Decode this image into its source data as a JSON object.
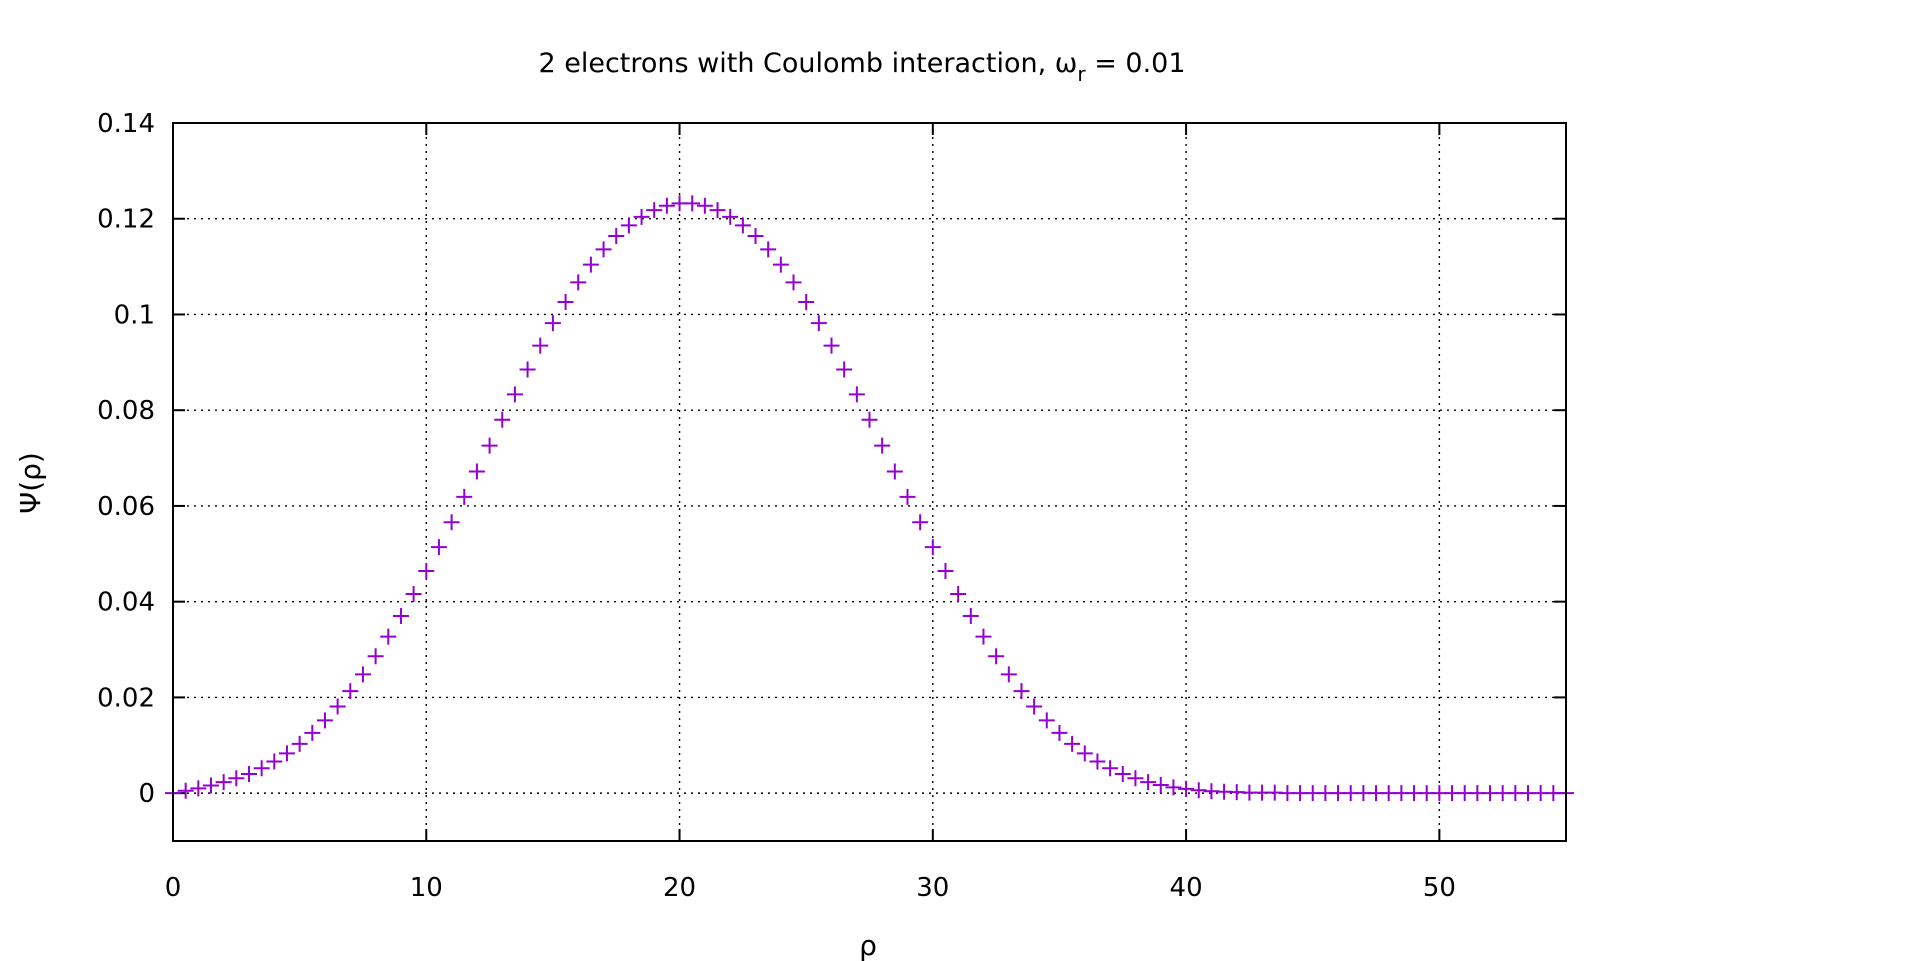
{
  "chart_data": {
    "type": "scatter",
    "title": {
      "main": "2 electrons with Coulomb interaction, ω",
      "subscript": "r",
      "suffix": " = 0.01"
    },
    "xlabel": "ρ",
    "ylabel": "Ψ(ρ)",
    "xlim": [
      0,
      55
    ],
    "ylim": [
      -0.01,
      0.14
    ],
    "xticks": [
      0,
      10,
      20,
      30,
      40,
      50
    ],
    "xtick_labels": [
      "0",
      "10",
      "20",
      "30",
      "40",
      "50"
    ],
    "yticks": [
      0,
      0.02,
      0.04,
      0.06,
      0.08,
      0.1,
      0.12,
      0.14
    ],
    "ytick_labels": [
      "0",
      "0.02",
      "0.04",
      "0.06",
      "0.08",
      "0.1",
      "0.12",
      "0.14"
    ],
    "grid": true,
    "marker": "plus",
    "color": "#9400d3",
    "series": [
      {
        "x": [
          0,
          0.5,
          1,
          1.5,
          2,
          2.5,
          3,
          3.5,
          4,
          4.5,
          5,
          5.5,
          6,
          6.5,
          7,
          7.5,
          8,
          8.5,
          9,
          9.5,
          10,
          10.5,
          11,
          11.5,
          12,
          12.5,
          13,
          13.5,
          14,
          14.5,
          15,
          15.5,
          16,
          16.5,
          17,
          17.5,
          18,
          18.5,
          19,
          19.5,
          20,
          20.5,
          21,
          21.5,
          22,
          22.5,
          23,
          23.5,
          24,
          24.5,
          25,
          25.5,
          26,
          26.5,
          27,
          27.5,
          28,
          28.5,
          29,
          29.5,
          30,
          30.5,
          31,
          31.5,
          32,
          32.5,
          33,
          33.5,
          34,
          34.5,
          35,
          35.5,
          36,
          36.5,
          37,
          37.5,
          38,
          38.5,
          39,
          39.5,
          40,
          40.5,
          41,
          41.5,
          42,
          42.5,
          43,
          43.5,
          44,
          44.5,
          45,
          45.5,
          46,
          46.5,
          47,
          47.5,
          48,
          48.5,
          49,
          49.5,
          50,
          50.5,
          51,
          51.5,
          52,
          52.5,
          53,
          53.5,
          54,
          54.5,
          55
        ],
        "y": [
          0,
          0.0005,
          0.001,
          0.0016,
          0.0023,
          0.0031,
          0.004,
          0.0052,
          0.0066,
          0.0083,
          0.0103,
          0.0126,
          0.0152,
          0.0181,
          0.0213,
          0.0248,
          0.0286,
          0.0327,
          0.037,
          0.0416,
          0.0464,
          0.0514,
          0.0566,
          0.0619,
          0.0672,
          0.0726,
          0.078,
          0.0833,
          0.0885,
          0.0935,
          0.0982,
          0.1026,
          0.1067,
          0.1104,
          0.1136,
          0.1164,
          0.1186,
          0.1204,
          0.1218,
          0.1227,
          0.1232,
          0.1232,
          0.1227,
          0.1218,
          0.1204,
          0.1186,
          0.1164,
          0.1136,
          0.1104,
          0.1067,
          0.1026,
          0.0982,
          0.0935,
          0.0885,
          0.0833,
          0.078,
          0.0726,
          0.0672,
          0.0619,
          0.0566,
          0.0514,
          0.0464,
          0.0416,
          0.037,
          0.0327,
          0.0286,
          0.0248,
          0.0213,
          0.0181,
          0.0152,
          0.0126,
          0.0103,
          0.0083,
          0.0066,
          0.0052,
          0.004,
          0.0031,
          0.0023,
          0.0017,
          0.0012,
          0.0009,
          0.0006,
          0.0004,
          0.0003,
          0.0002,
          0.0001,
          0.0001,
          0.0001,
          0,
          0,
          0,
          0,
          0,
          0,
          0,
          0,
          0,
          0,
          0,
          0,
          0,
          0,
          0,
          0,
          0,
          0,
          0,
          0,
          0,
          0,
          0
        ]
      }
    ]
  }
}
